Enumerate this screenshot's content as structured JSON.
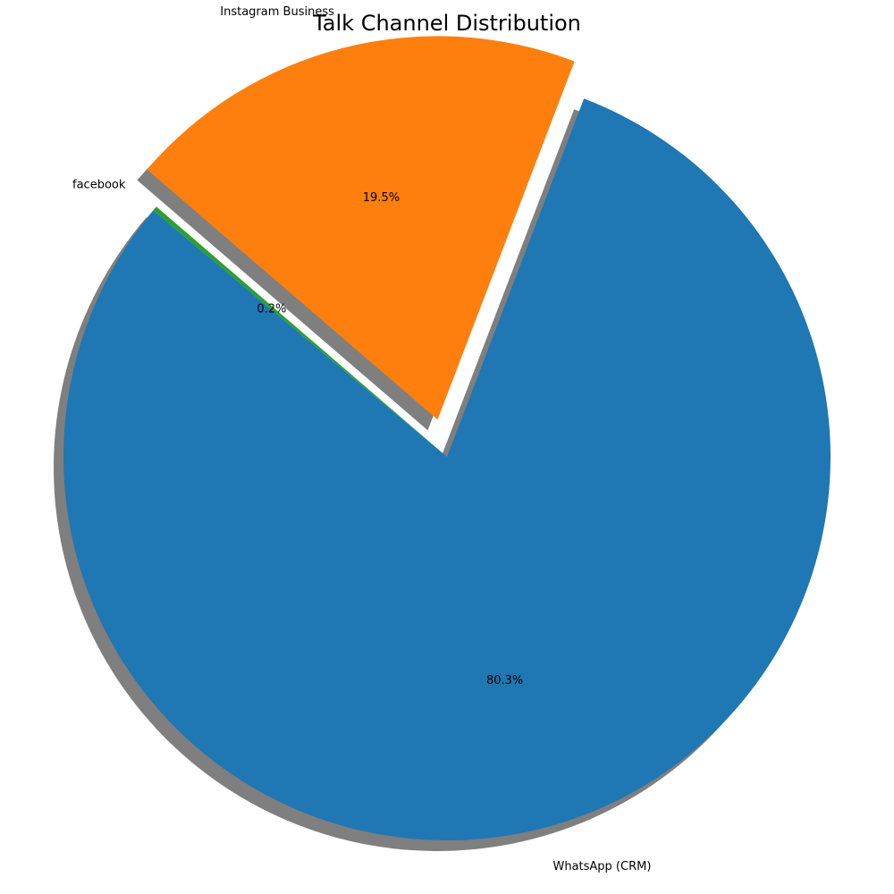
{
  "chart_data": {
    "type": "pie",
    "title": "Talk Channel Distribution",
    "start_angle_deg": 140,
    "direction": "counterclockwise",
    "shadow": true,
    "slices": [
      {
        "label": "WhatsApp (CRM)",
        "percent_label": "80.3%",
        "value": 80.3,
        "color": "#1f77b4",
        "exploded": false
      },
      {
        "label": "Instagram Business",
        "percent_label": "19.5%",
        "value": 19.5,
        "color": "#ff7f0e",
        "exploded": true
      },
      {
        "label": "facebook",
        "percent_label": "0.2%",
        "value": 0.2,
        "color": "#2ca02c",
        "exploded": false
      }
    ]
  }
}
